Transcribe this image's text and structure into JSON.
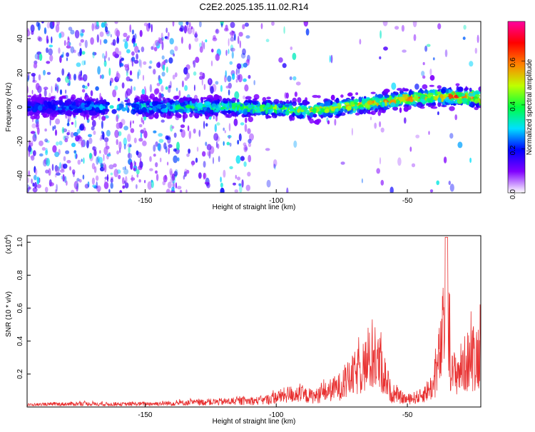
{
  "title": "C2E2.2025.135.11.02.R14",
  "chart_data": [
    {
      "type": "heatmap",
      "xlabel": "Height of straight line (km)",
      "ylabel": "Frequency (Hz)",
      "xlim": [
        -195,
        -22
      ],
      "ylim": [
        -50,
        50
      ],
      "x_ticks": [
        -150,
        -100,
        -50
      ],
      "y_ticks": [
        -40,
        -20,
        0,
        20,
        40
      ],
      "colorbar": {
        "label": "Normalized spectral amplitude",
        "range": [
          0,
          0.78
        ],
        "ticks": [
          0.0,
          0.2,
          0.4,
          0.6
        ],
        "colormap": [
          "#ffffff",
          "#8000ff",
          "#0000ff",
          "#00e0ff",
          "#00ff40",
          "#c0ff00",
          "#ff8000",
          "#ff0000",
          "#ff00a0"
        ]
      },
      "ridge": [
        {
          "x": -195,
          "y": 0
        },
        {
          "x": -150,
          "y": 0
        },
        {
          "x": -120,
          "y": 0
        },
        {
          "x": -100,
          "y": -1
        },
        {
          "x": -90,
          "y": -2
        },
        {
          "x": -80,
          "y": -1
        },
        {
          "x": -70,
          "y": 1
        },
        {
          "x": -60,
          "y": 3
        },
        {
          "x": -50,
          "y": 5
        },
        {
          "x": -40,
          "y": 6
        },
        {
          "x": -30,
          "y": 6
        },
        {
          "x": -22,
          "y": 5
        }
      ]
    },
    {
      "type": "line",
      "xlabel": "Height of straight line (km)",
      "ylabel": "SNR (10 * v/v)",
      "y_multiplier": "(x10",
      "y_multiplier_exp": "4",
      "y_multiplier_close": ")",
      "xlim": [
        -195,
        -22
      ],
      "ylim": [
        0,
        1.04
      ],
      "x_ticks": [
        -150,
        -100,
        -50
      ],
      "y_ticks": [
        0.2,
        0.4,
        0.6,
        0.8,
        1.0
      ],
      "series_color": "#e83030",
      "envelope": [
        {
          "x": -195,
          "y": 0.02
        },
        {
          "x": -175,
          "y": 0.03
        },
        {
          "x": -160,
          "y": 0.025
        },
        {
          "x": -140,
          "y": 0.035
        },
        {
          "x": -120,
          "y": 0.05
        },
        {
          "x": -105,
          "y": 0.06
        },
        {
          "x": -95,
          "y": 0.12
        },
        {
          "x": -85,
          "y": 0.1
        },
        {
          "x": -75,
          "y": 0.2
        },
        {
          "x": -68,
          "y": 0.35
        },
        {
          "x": -63,
          "y": 0.45
        },
        {
          "x": -60,
          "y": 0.38
        },
        {
          "x": -56,
          "y": 0.12
        },
        {
          "x": -50,
          "y": 0.07
        },
        {
          "x": -45,
          "y": 0.1
        },
        {
          "x": -40,
          "y": 0.2
        },
        {
          "x": -37,
          "y": 0.55
        },
        {
          "x": -35,
          "y": 0.95
        },
        {
          "x": -33,
          "y": 0.3
        },
        {
          "x": -30,
          "y": 0.35
        },
        {
          "x": -26,
          "y": 0.45
        },
        {
          "x": -22,
          "y": 0.5
        }
      ]
    }
  ]
}
